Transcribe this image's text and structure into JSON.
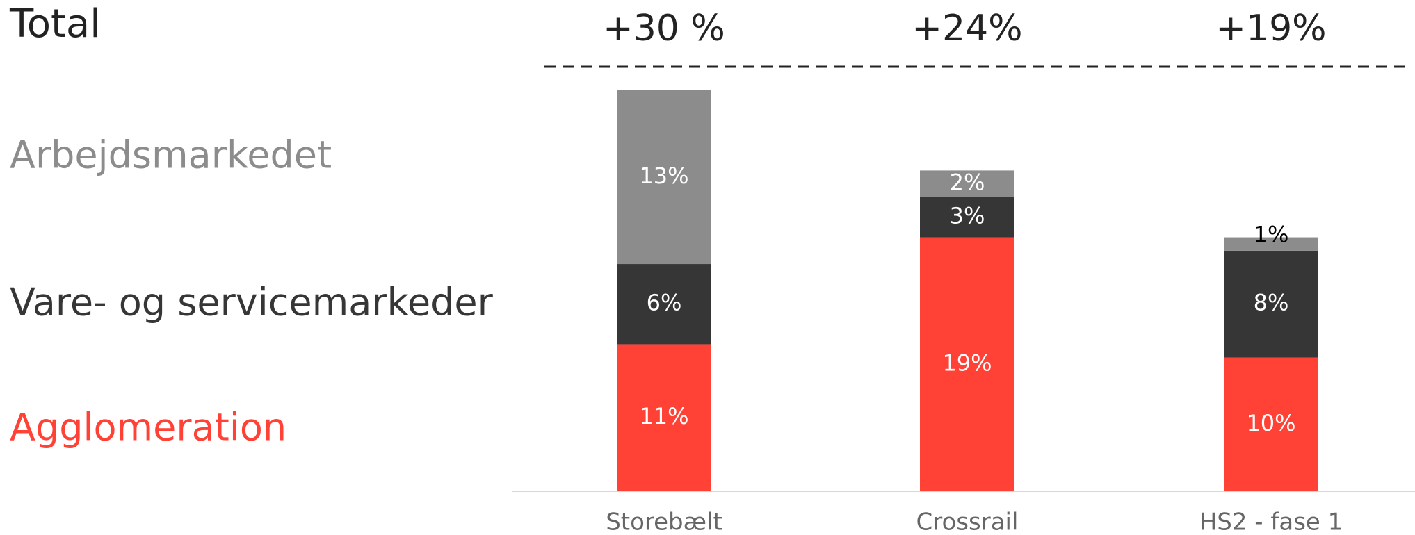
{
  "chart_data": {
    "type": "stacked_bar",
    "title": "Total",
    "categories": [
      "Storebælt",
      "Crossrail",
      "HS2 - fase 1"
    ],
    "series": [
      {
        "name": "Agglomeration",
        "color": "#ff4136",
        "values": [
          11,
          19,
          10
        ],
        "value_labels": [
          "11%",
          "19%",
          "10%"
        ]
      },
      {
        "name": "Vare- og servicemarkeder",
        "color": "#363636",
        "values": [
          6,
          3,
          8
        ],
        "value_labels": [
          "6%",
          "3%",
          "8%"
        ]
      },
      {
        "name": "Arbejdsmarkedet",
        "color": "#8c8c8c",
        "values": [
          13,
          2,
          1
        ],
        "value_labels": [
          "13%",
          "2%",
          "1%"
        ]
      }
    ],
    "totals": [
      30,
      24,
      19
    ],
    "total_labels": [
      "+30 %",
      "+24%",
      "+19%"
    ]
  }
}
